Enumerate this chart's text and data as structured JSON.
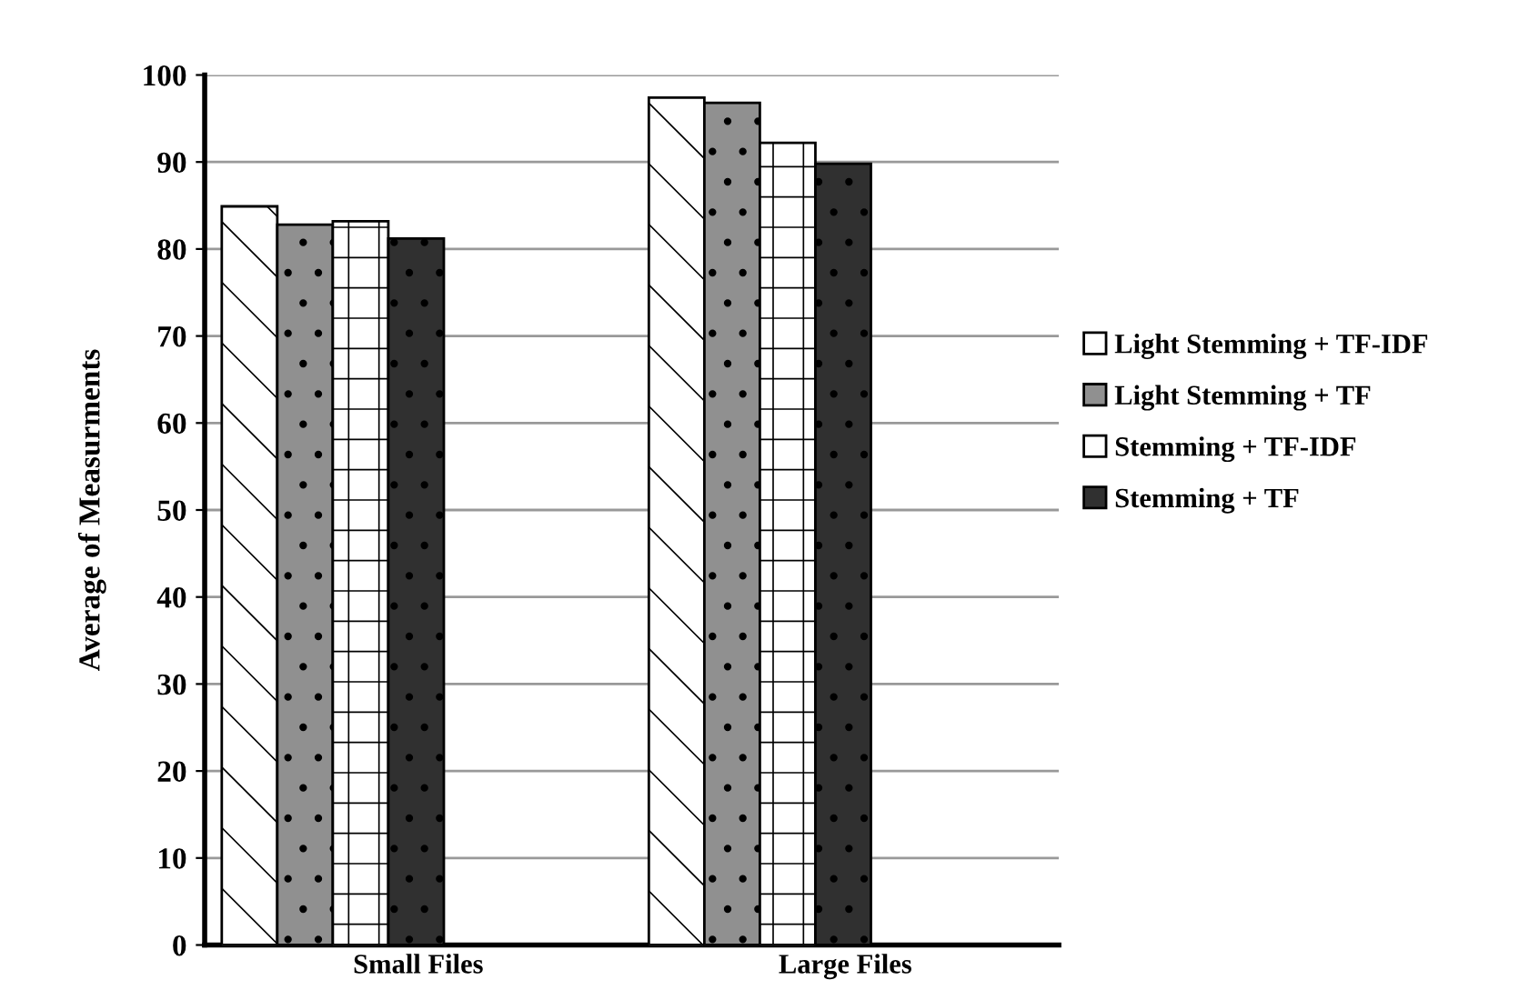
{
  "chart_data": {
    "type": "bar",
    "ylabel": "Average of Measurments",
    "categories": [
      "Small Files",
      "Large Files"
    ],
    "series": [
      {
        "name": "Light Stemming + TF-IDF",
        "color": "#ffffff",
        "values": [
          84.9,
          97.4
        ]
      },
      {
        "name": "Light Stemming + TF",
        "color": "#909090",
        "values": [
          82.8,
          96.8
        ]
      },
      {
        "name": "Stemming + TF-IDF",
        "color": "#ffffff",
        "values": [
          83.2,
          92.2
        ]
      },
      {
        "name": "Stemming + TF",
        "color": "#303030",
        "values": [
          81.2,
          89.8
        ]
      }
    ],
    "ylim": [
      0,
      100
    ],
    "yticks": [
      0,
      10,
      20,
      30,
      40,
      50,
      60,
      70,
      80,
      90,
      100
    ],
    "grid": "y",
    "legend": "right"
  }
}
